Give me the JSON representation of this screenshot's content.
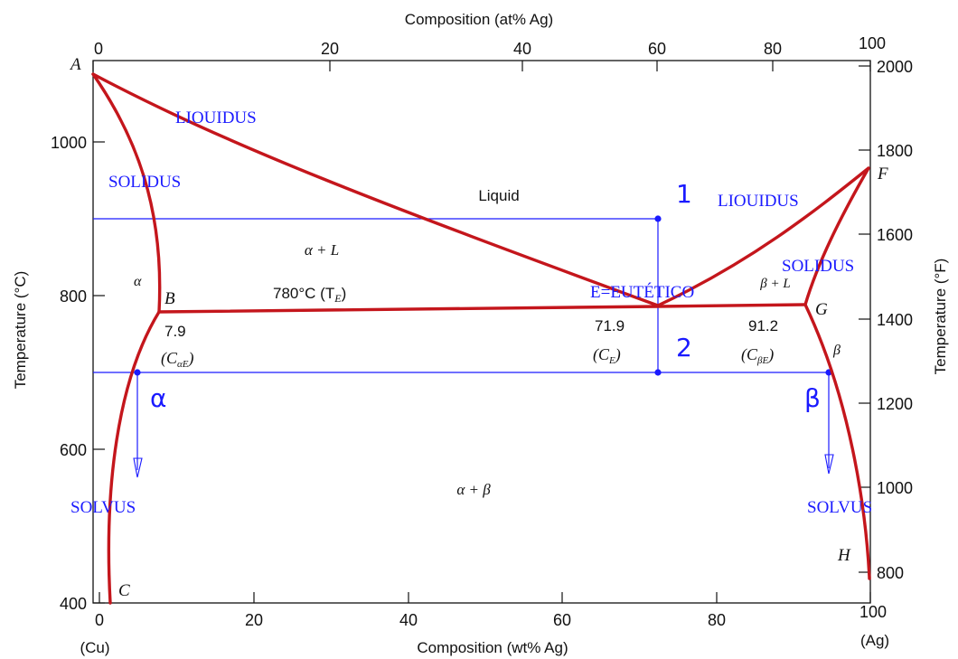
{
  "axes": {
    "top_title": "Composition (at% Ag)",
    "bottom_title": "Composition (wt% Ag)",
    "left_title": "Temperature (°C)",
    "right_title": "Temperature (°F)",
    "bottom_left_element": "(Cu)",
    "bottom_right_element": "(Ag)",
    "bottom_ticks": [
      "0",
      "20",
      "40",
      "60",
      "80",
      "100"
    ],
    "top_ticks": [
      "0",
      "20",
      "40",
      "60",
      "80",
      "100"
    ],
    "left_ticks": [
      "400",
      "600",
      "800",
      "1000"
    ],
    "right_ticks": [
      "800",
      "1000",
      "1200",
      "1400",
      "1600",
      "1800",
      "2000"
    ]
  },
  "points": {
    "A": "A",
    "B": "B",
    "C": "C",
    "F": "F",
    "G": "G",
    "H": "H"
  },
  "regions": {
    "liquid": "Liquid",
    "alpha_L": "α + L",
    "beta_L": "β + L",
    "alpha_beta": "α + β",
    "alpha": "α",
    "beta": "β"
  },
  "eutectic": {
    "temp_label": "780°C (T",
    "temp_sub": "E",
    "temp_close": ")",
    "c_alpha_val": "7.9",
    "c_alpha_label": "(C",
    "c_alpha_sub": "αE",
    "c_e_val": "71.9",
    "c_e_label": "(C",
    "c_e_sub": "E",
    "c_beta_val": "91.2",
    "c_beta_label": "(C",
    "c_beta_sub": "βE",
    "close_paren": ")"
  },
  "annotations": {
    "liquidus_left": "LIOUIDUS",
    "liquidus_right": "LIOUIDUS",
    "solidus_left": "SOLIDUS",
    "solidus_right": "SOLIDUS",
    "solvus_left": "SOLVUS",
    "solvus_right": "SOLVUS",
    "eutectic_name": "E=EUTÉTICO",
    "state_1": "1",
    "state_2": "2",
    "alpha_mark": "α",
    "beta_mark": "β"
  },
  "colors": {
    "phase_line": "#c4161c",
    "annotation": "#1a1aff",
    "axis": "#111111"
  }
}
